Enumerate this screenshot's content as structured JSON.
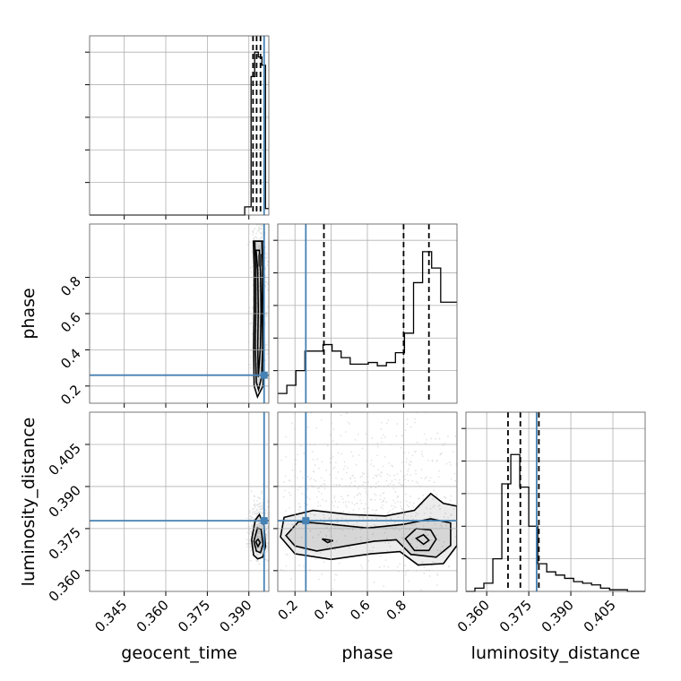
{
  "chart_data": {
    "type": "corner",
    "parameters": [
      "geocent_time",
      "phase",
      "luminosity_distance"
    ],
    "colors": {
      "truth": "#4682b4",
      "samples": "#000000",
      "grid": "#b0b0b0"
    },
    "ranges": {
      "geocent_time": [
        0.3325,
        0.3972
      ],
      "phase": [
        0.105,
        1.095
      ],
      "luminosity_distance": [
        0.3526,
        0.4165
      ]
    },
    "ticks": {
      "geocent_time": [
        "0.345",
        "0.360",
        "0.375",
        "0.390"
      ],
      "phase": [
        "0.2",
        "0.4",
        "0.6",
        "0.8"
      ],
      "luminosity_distance": [
        "0.360",
        "0.375",
        "0.390",
        "0.405"
      ]
    },
    "truths": {
      "geocent_time": 0.3955,
      "phase": 0.26,
      "luminosity_distance": 0.3778
    },
    "quantiles": {
      "geocent_time": [
        0.3915,
        0.3928,
        0.3942
      ],
      "phase": [
        0.36,
        0.8,
        0.94
      ],
      "luminosity_distance": [
        0.3676,
        0.372,
        0.3786
      ]
    },
    "histograms": {
      "geocent_time": {
        "edges": [
          0.3325,
          0.3885,
          0.3908,
          0.3921,
          0.3934,
          0.3947,
          0.396,
          0.3972
        ],
        "counts": [
          0,
          0.05,
          0.85,
          1,
          0.97,
          0.92,
          0.04
        ]
      },
      "phase": {
        "edges": [
          0.105,
          0.155,
          0.205,
          0.255,
          0.305,
          0.355,
          0.405,
          0.455,
          0.505,
          0.555,
          0.605,
          0.655,
          0.705,
          0.755,
          0.805,
          0.855,
          0.905,
          0.955,
          1.005,
          1.055,
          1.095
        ],
        "counts": [
          0.06,
          0.11,
          0.2,
          0.32,
          0.32,
          0.36,
          0.32,
          0.28,
          0.24,
          0.24,
          0.25,
          0.23,
          0.25,
          0.31,
          0.43,
          0.74,
          0.93,
          0.83,
          0.62,
          0.62
        ]
      },
      "luminosity_distance": {
        "edges": [
          0.3526,
          0.3558,
          0.359,
          0.3622,
          0.3654,
          0.3686,
          0.3718,
          0.375,
          0.3782,
          0.3814,
          0.3846,
          0.3878,
          0.391,
          0.3942,
          0.3974,
          0.4006,
          0.4038,
          0.407,
          0.4102,
          0.4134,
          0.4165
        ],
        "counts": [
          0,
          0.02,
          0.05,
          0.2,
          0.66,
          0.84,
          0.64,
          0.4,
          0.17,
          0.12,
          0.1,
          0.08,
          0.06,
          0.05,
          0.04,
          0.02,
          0.01,
          0.01,
          0,
          0
        ]
      }
    },
    "contours_2d": {
      "phase_vs_geocent_time": [
        [
          [
            0.3926,
            0.95
          ],
          [
            0.3932,
            0.84
          ],
          [
            0.3934,
            0.62
          ],
          [
            0.3932,
            0.42
          ],
          [
            0.3934,
            0.25
          ],
          [
            0.3942,
            0.42
          ],
          [
            0.3944,
            0.62
          ],
          [
            0.3942,
            0.84
          ],
          [
            0.3938,
            0.95
          ]
        ],
        [
          [
            0.3921,
            1.0
          ],
          [
            0.3925,
            0.86
          ],
          [
            0.3925,
            0.62
          ],
          [
            0.3923,
            0.42
          ],
          [
            0.3927,
            0.22
          ],
          [
            0.3935,
            0.18
          ],
          [
            0.3946,
            0.25
          ],
          [
            0.395,
            0.42
          ],
          [
            0.3948,
            0.62
          ],
          [
            0.395,
            0.86
          ],
          [
            0.3947,
            1.0
          ]
        ],
        [
          [
            0.3916,
            1.0
          ],
          [
            0.3919,
            0.86
          ],
          [
            0.3919,
            0.62
          ],
          [
            0.3917,
            0.42
          ],
          [
            0.3919,
            0.2
          ],
          [
            0.3931,
            0.14
          ],
          [
            0.3951,
            0.2
          ],
          [
            0.3955,
            0.42
          ],
          [
            0.3953,
            0.62
          ],
          [
            0.3955,
            0.86
          ],
          [
            0.3953,
            1.0
          ]
        ]
      ],
      "luminosity_distance_vs_geocent_time": [
        [
          [
            0.3925,
            0.3703
          ],
          [
            0.3933,
            0.3686
          ],
          [
            0.3941,
            0.37
          ],
          [
            0.3933,
            0.3712
          ]
        ],
        [
          [
            0.3918,
            0.3705
          ],
          [
            0.3927,
            0.367
          ],
          [
            0.3942,
            0.3664
          ],
          [
            0.3951,
            0.3694
          ],
          [
            0.3944,
            0.3748
          ],
          [
            0.3931,
            0.3752
          ]
        ],
        [
          [
            0.391,
            0.371
          ],
          [
            0.3917,
            0.3655
          ],
          [
            0.3932,
            0.3642
          ],
          [
            0.395,
            0.3648
          ],
          [
            0.396,
            0.3686
          ],
          [
            0.3955,
            0.376
          ],
          [
            0.3938,
            0.38
          ],
          [
            0.3923,
            0.378
          ]
        ]
      ],
      "luminosity_distance_vs_phase": [
        [
          [
            0.35,
            0.3713
          ],
          [
            0.38,
            0.37
          ],
          [
            0.41,
            0.3707
          ]
        ],
        [
          [
            0.87,
            0.3715
          ],
          [
            0.91,
            0.3694
          ],
          [
            0.94,
            0.3708
          ],
          [
            0.91,
            0.3728
          ]
        ],
        [
          [
            0.81,
            0.3714
          ],
          [
            0.86,
            0.3672
          ],
          [
            0.94,
            0.3672
          ],
          [
            0.98,
            0.3712
          ],
          [
            0.95,
            0.3745
          ],
          [
            0.87,
            0.375
          ]
        ],
        [
          [
            0.15,
            0.3725
          ],
          [
            0.2,
            0.3688
          ],
          [
            0.32,
            0.367
          ],
          [
            0.5,
            0.369
          ],
          [
            0.64,
            0.3705
          ],
          [
            0.76,
            0.371
          ],
          [
            0.84,
            0.3658
          ],
          [
            0.98,
            0.3648
          ],
          [
            1.06,
            0.369
          ],
          [
            1.06,
            0.377
          ],
          [
            0.95,
            0.3785
          ],
          [
            0.8,
            0.3765
          ],
          [
            0.6,
            0.3752
          ],
          [
            0.4,
            0.3765
          ],
          [
            0.22,
            0.3775
          ]
        ],
        [
          [
            0.12,
            0.372
          ],
          [
            0.2,
            0.366
          ],
          [
            0.4,
            0.364
          ],
          [
            0.62,
            0.366
          ],
          [
            0.78,
            0.3668
          ],
          [
            0.88,
            0.362
          ],
          [
            1.02,
            0.3625
          ],
          [
            1.095,
            0.369
          ],
          [
            1.095,
            0.383
          ],
          [
            1.02,
            0.384
          ],
          [
            0.95,
            0.3875
          ],
          [
            0.86,
            0.3815
          ],
          [
            0.7,
            0.3795
          ],
          [
            0.5,
            0.38
          ],
          [
            0.3,
            0.3815
          ],
          [
            0.14,
            0.379
          ]
        ]
      ]
    }
  }
}
